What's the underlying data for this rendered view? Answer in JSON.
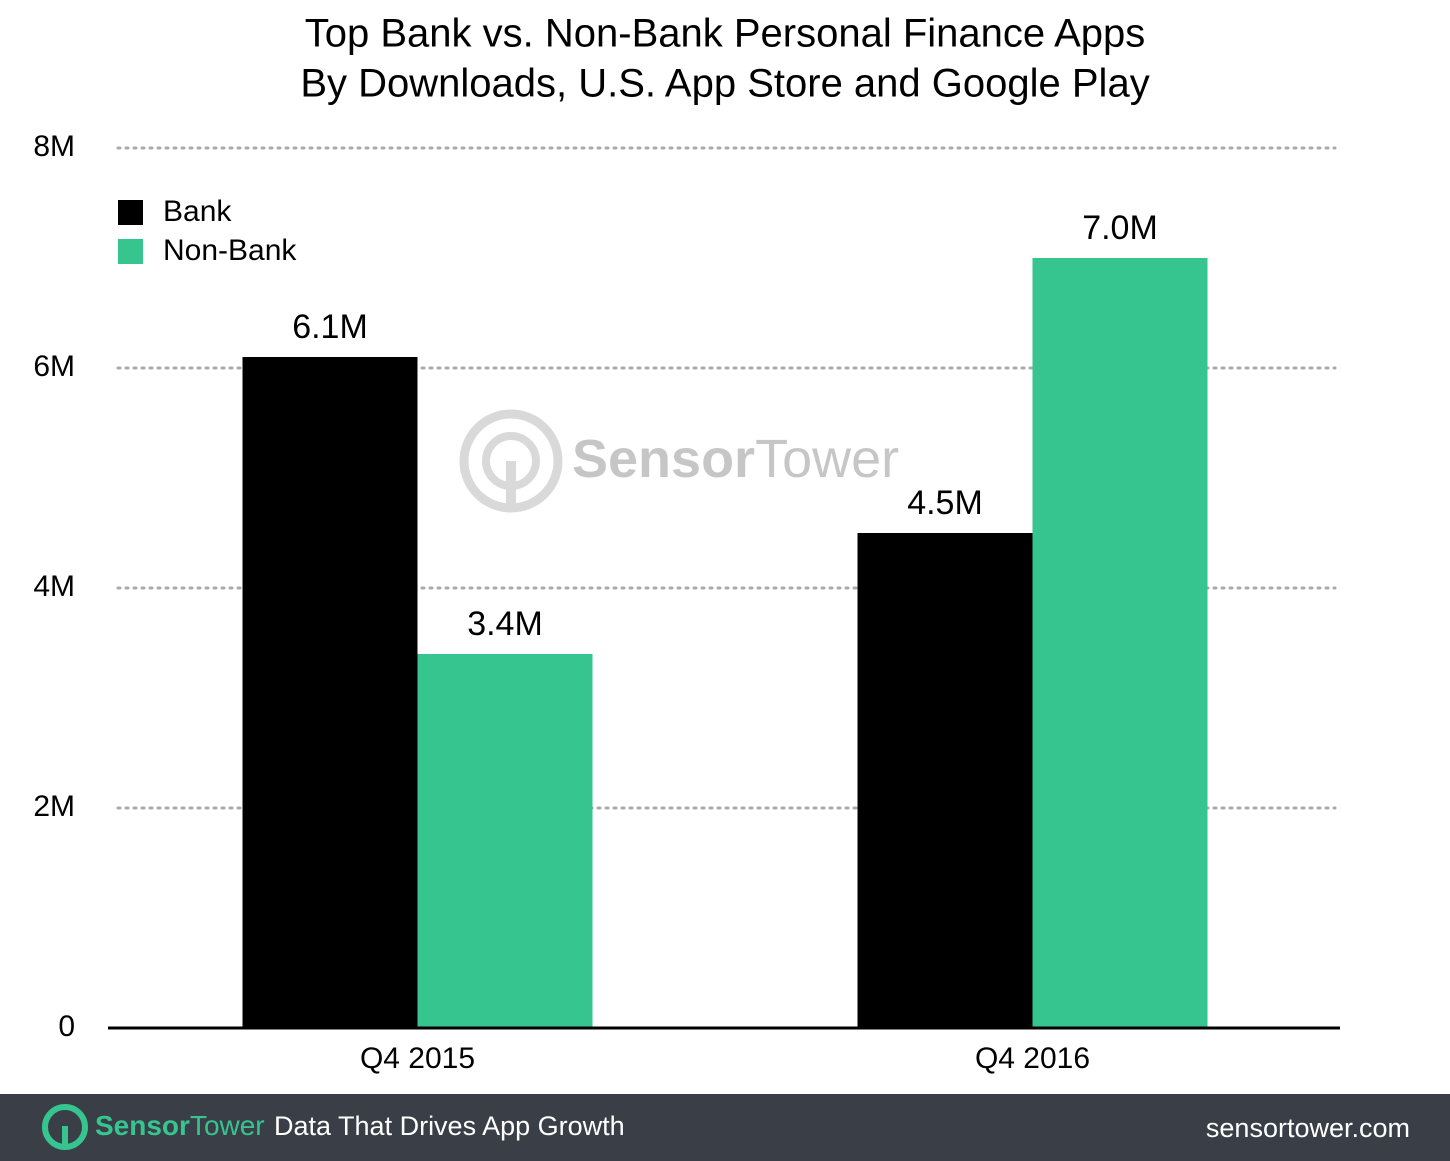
{
  "chart_data": {
    "type": "bar",
    "title": [
      "Top Bank vs. Non-Bank Personal Finance Apps",
      "By Downloads, U.S. App Store and Google Play"
    ],
    "categories": [
      "Q4 2015",
      "Q4 2016"
    ],
    "series": [
      {
        "name": "Bank",
        "color": "#000000",
        "values": [
          6100000,
          4500000
        ],
        "value_labels": [
          "6.1M",
          "4.5M"
        ]
      },
      {
        "name": "Non-Bank",
        "color": "#36c58f",
        "values": [
          3400000,
          7000000
        ],
        "value_labels": [
          "3.4M",
          "7.0M"
        ]
      }
    ],
    "ylim": [
      0,
      8000000
    ],
    "yticks": [
      0,
      {
        "value": 2000000,
        "label": "2M"
      },
      {
        "value": 4000000,
        "label": "4M"
      },
      {
        "value": 6000000,
        "label": "6M"
      },
      {
        "value": 8000000,
        "label": "8M"
      }
    ],
    "grid": true,
    "legend": "top-left"
  },
  "watermark": {
    "brand_first": "Sensor",
    "brand_second": "Tower"
  },
  "footer": {
    "brand_first": "Sensor",
    "brand_second": "Tower",
    "tagline": "Data That Drives App Growth",
    "url": "sensortower.com"
  }
}
